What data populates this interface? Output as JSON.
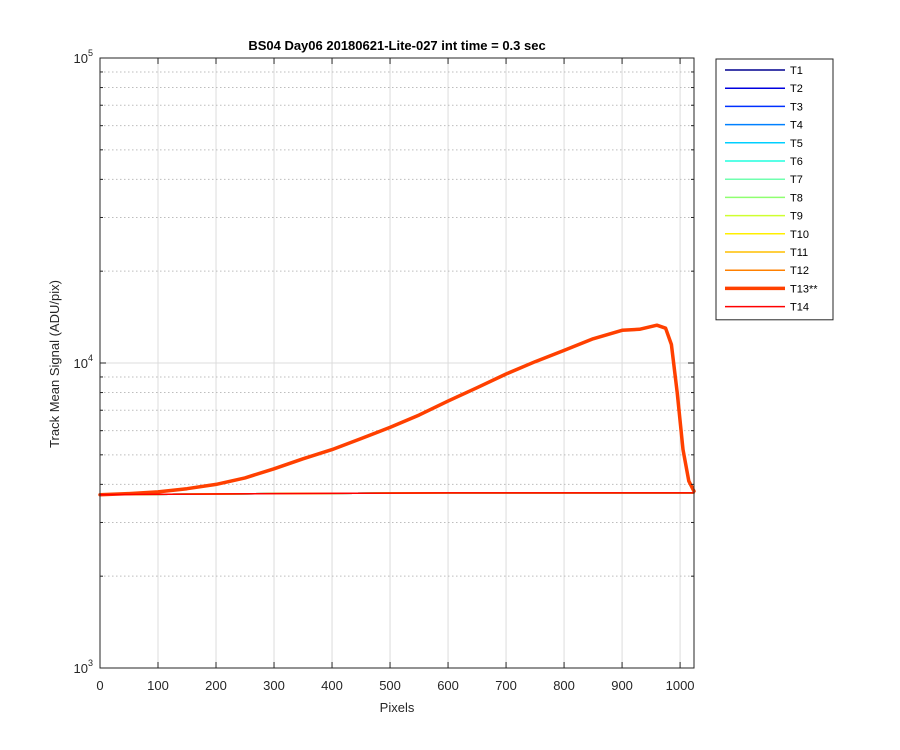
{
  "chart_data": {
    "type": "line",
    "title": "BS04 Day06 20180621-Lite-027 int time = 0.3 sec",
    "xlabel": "Pixels",
    "ylabel": "Track Mean Signal (ADU/pix)",
    "xlim": [
      0,
      1024
    ],
    "ylim": [
      1000,
      100000
    ],
    "yscale": "log",
    "grid": true,
    "legend_position": "outside-right",
    "xticks": [
      0,
      100,
      200,
      300,
      400,
      500,
      600,
      700,
      800,
      900,
      1000
    ],
    "yticks": [
      {
        "value": 1000,
        "base": "10",
        "exp": "3"
      },
      {
        "value": 10000,
        "base": "10",
        "exp": "4"
      },
      {
        "value": 100000,
        "base": "10",
        "exp": "5"
      }
    ],
    "series": [
      {
        "name": "T1",
        "color": "#00008f",
        "width": 1.5,
        "x": [
          0,
          300,
          600,
          1024
        ],
        "values": [
          3700,
          3730,
          3750,
          3750
        ]
      },
      {
        "name": "T2",
        "color": "#0000df",
        "width": 1.5,
        "x": [
          0,
          300,
          600,
          1024
        ],
        "values": [
          3700,
          3730,
          3750,
          3750
        ]
      },
      {
        "name": "T3",
        "color": "#0030ff",
        "width": 1.5,
        "x": [
          0,
          300,
          600,
          1024
        ],
        "values": [
          3700,
          3730,
          3750,
          3750
        ]
      },
      {
        "name": "T4",
        "color": "#0080ff",
        "width": 1.5,
        "x": [
          0,
          300,
          600,
          1024
        ],
        "values": [
          3700,
          3730,
          3750,
          3750
        ]
      },
      {
        "name": "T5",
        "color": "#00cfff",
        "width": 1.5,
        "x": [
          0,
          300,
          600,
          1024
        ],
        "values": [
          3700,
          3730,
          3750,
          3750
        ]
      },
      {
        "name": "T6",
        "color": "#20ffdf",
        "width": 1.5,
        "x": [
          0,
          300,
          600,
          1024
        ],
        "values": [
          3700,
          3730,
          3750,
          3750
        ]
      },
      {
        "name": "T7",
        "color": "#70ffaf",
        "width": 1.5,
        "x": [
          0,
          300,
          600,
          1024
        ],
        "values": [
          3700,
          3730,
          3750,
          3750
        ]
      },
      {
        "name": "T8",
        "color": "#8fff70",
        "width": 1.5,
        "x": [
          0,
          300,
          600,
          1024
        ],
        "values": [
          3700,
          3730,
          3750,
          3750
        ]
      },
      {
        "name": "T9",
        "color": "#cfff30",
        "width": 1.5,
        "x": [
          0,
          300,
          600,
          1024
        ],
        "values": [
          3700,
          3730,
          3750,
          3750
        ]
      },
      {
        "name": "T10",
        "color": "#ffef00",
        "width": 1.5,
        "x": [
          0,
          300,
          600,
          1024
        ],
        "values": [
          3700,
          3730,
          3750,
          3750
        ]
      },
      {
        "name": "T11",
        "color": "#ffbf00",
        "width": 1.5,
        "x": [
          0,
          300,
          600,
          1024
        ],
        "values": [
          3700,
          3730,
          3750,
          3750
        ]
      },
      {
        "name": "T12",
        "color": "#ff8000",
        "width": 1.5,
        "x": [
          0,
          300,
          600,
          1024
        ],
        "values": [
          3700,
          3730,
          3750,
          3750
        ]
      },
      {
        "name": "T13**",
        "color": "#ff4000",
        "width": 3.5,
        "x": [
          0,
          50,
          100,
          150,
          200,
          250,
          300,
          350,
          400,
          450,
          500,
          550,
          600,
          650,
          700,
          750,
          800,
          850,
          900,
          930,
          960,
          975,
          985,
          995,
          1005,
          1015,
          1024
        ],
        "values": [
          3700,
          3730,
          3780,
          3870,
          4000,
          4200,
          4500,
          4850,
          5200,
          5650,
          6150,
          6750,
          7500,
          8300,
          9200,
          10100,
          11000,
          12000,
          12800,
          12900,
          13300,
          13000,
          11500,
          8000,
          5200,
          4100,
          3800
        ]
      },
      {
        "name": "T14",
        "color": "#ff0000",
        "width": 1.5,
        "x": [
          0,
          300,
          600,
          1024
        ],
        "values": [
          3700,
          3730,
          3750,
          3750
        ]
      }
    ]
  }
}
